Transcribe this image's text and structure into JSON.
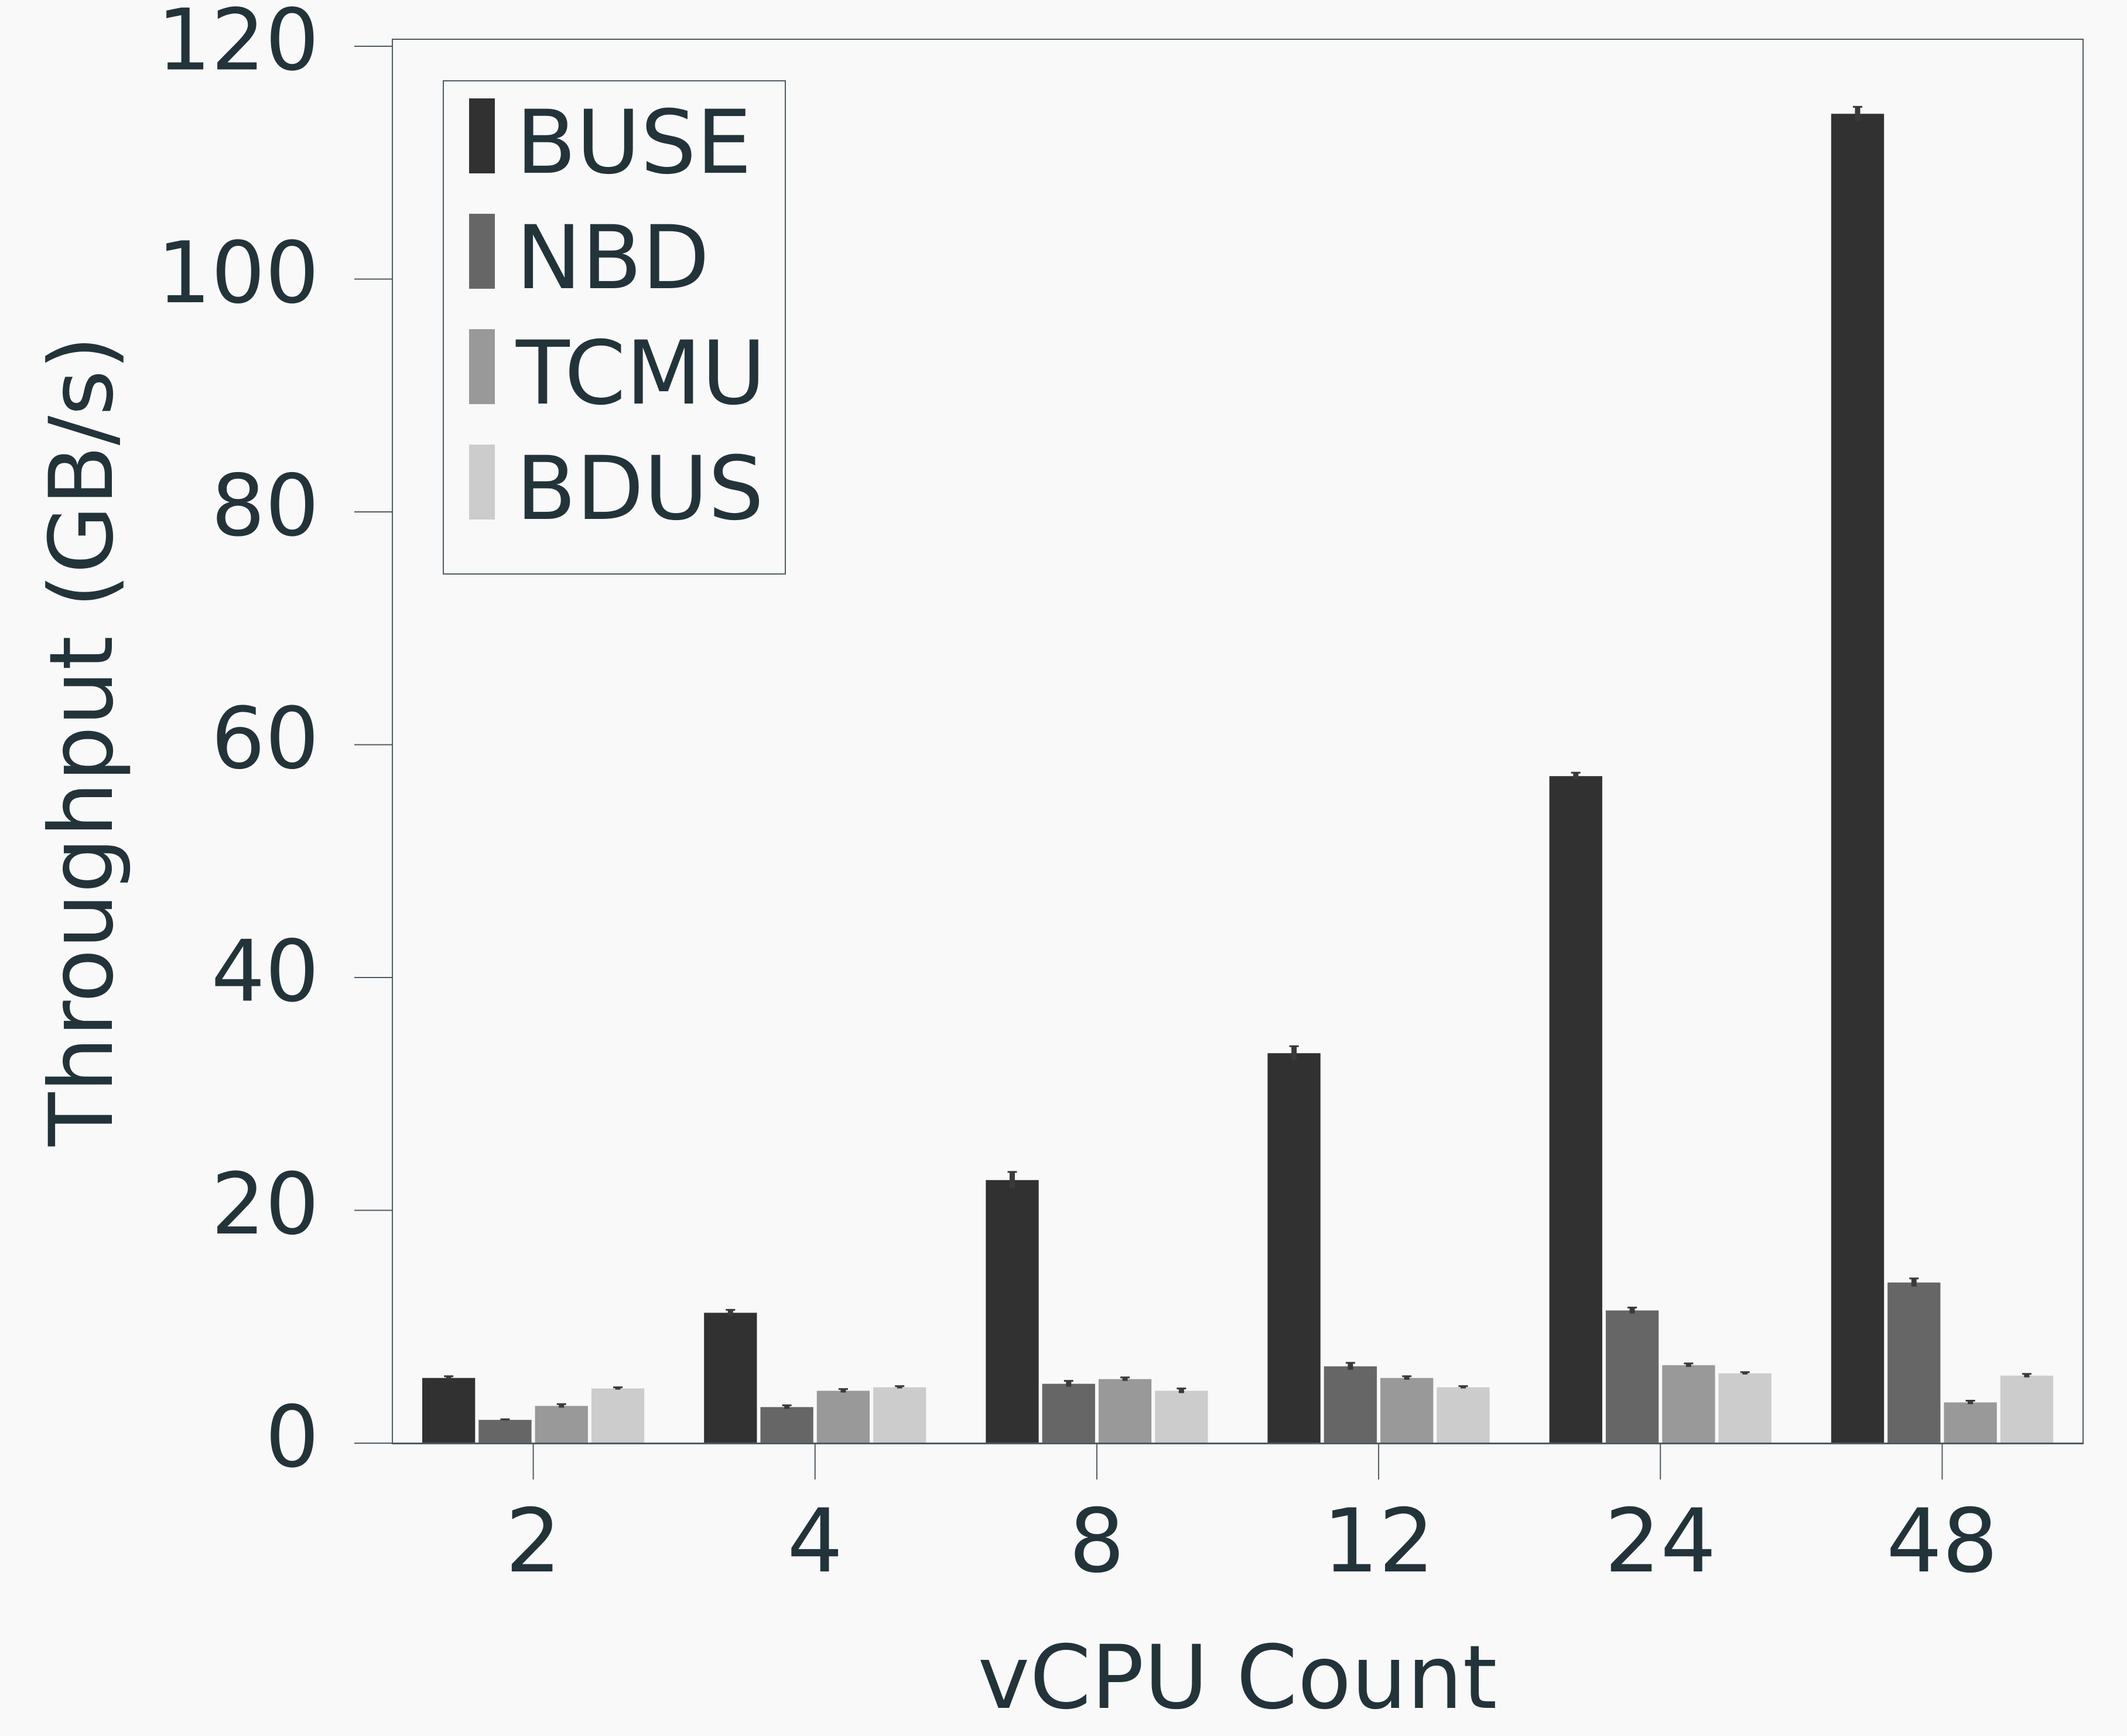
{
  "colors": {
    "background": "#f9f9f9",
    "text": "#23333a",
    "axis": "#4f5b62",
    "legend_border": "#4f5b62",
    "BUSE": "#313131",
    "NBD": "#666666",
    "TCMU": "#999999",
    "BDUS": "#cccccc",
    "error_bar": "#3a3a3a"
  },
  "chart_data": {
    "type": "bar",
    "title": "",
    "xlabel": "vCPU Count",
    "ylabel": "Throughput (GB/s)",
    "categories": [
      "2",
      "4",
      "8",
      "12",
      "24",
      "48"
    ],
    "ylim": [
      0,
      120
    ],
    "yticks": [
      0,
      20,
      40,
      60,
      80,
      100,
      120
    ],
    "ytick_labels": [
      "0",
      "20",
      "40",
      "60",
      "80",
      "100",
      "120"
    ],
    "grid": false,
    "legend": "top-left",
    "series": [
      {
        "name": "BUSE",
        "color": "#313131",
        "values": [
          5.6,
          11.2,
          22.6,
          33.5,
          57.3,
          114.2
        ],
        "errors": [
          0.15,
          0.25,
          0.7,
          0.6,
          0.3,
          0.6
        ]
      },
      {
        "name": "NBD",
        "color": "#666666",
        "values": [
          2.0,
          3.1,
          5.1,
          6.6,
          11.4,
          13.8
        ],
        "errors": [
          0.05,
          0.15,
          0.25,
          0.3,
          0.25,
          0.35
        ]
      },
      {
        "name": "TCMU",
        "color": "#999999",
        "values": [
          3.2,
          4.5,
          5.5,
          5.6,
          6.7,
          3.5
        ],
        "errors": [
          0.15,
          0.15,
          0.15,
          0.15,
          0.15,
          0.15
        ]
      },
      {
        "name": "BDUS",
        "color": "#cccccc",
        "values": [
          4.7,
          4.8,
          4.5,
          4.8,
          6.0,
          5.8
        ],
        "errors": [
          0.1,
          0.1,
          0.2,
          0.1,
          0.1,
          0.15
        ]
      }
    ]
  }
}
